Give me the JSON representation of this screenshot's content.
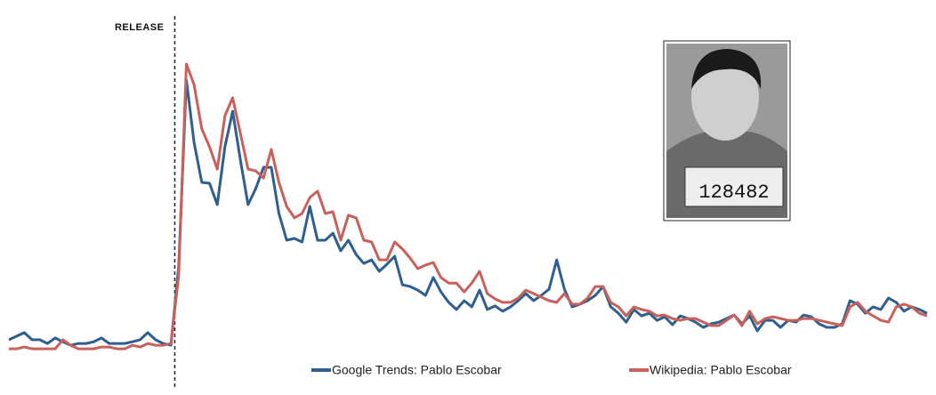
{
  "chart_data": {
    "type": "line",
    "xlim": [
      0,
      119
    ],
    "ylim": [
      0,
      100
    ],
    "legend": "bottom",
    "annotation": {
      "text": "RELEASE",
      "x": 21.5
    },
    "photo_plate": "128482",
    "series": [
      {
        "name": "Google Trends: Pablo Escobar",
        "color": "#2e5f8f",
        "values": [
          5.5,
          6.7,
          7.9,
          5.5,
          5.5,
          4.2,
          6.1,
          4.8,
          3.6,
          4.2,
          4.2,
          4.8,
          6.1,
          4.2,
          4.2,
          4.2,
          4.8,
          5.5,
          7.9,
          5.5,
          4.2,
          3.6,
          30.3,
          93.9,
          72.7,
          59.1,
          58.8,
          51.5,
          71.2,
          83.3,
          66.7,
          51.5,
          57,
          64.2,
          64.2,
          48.5,
          39.4,
          40,
          38.8,
          50.9,
          39.4,
          39.4,
          41.8,
          35.8,
          39.4,
          34.5,
          31.5,
          32.7,
          28.8,
          31.2,
          33.9,
          24.2,
          23.6,
          22.4,
          20.6,
          26.7,
          21.8,
          18.2,
          15.8,
          18.8,
          16.7,
          22.4,
          15.8,
          17,
          15.2,
          16.7,
          18.8,
          21.2,
          18.8,
          20.6,
          22.7,
          32.7,
          22.7,
          16.7,
          17.6,
          18.8,
          20.6,
          23.6,
          16.7,
          14.5,
          11.5,
          15.8,
          13.6,
          14.5,
          12.1,
          13.3,
          10.6,
          13.6,
          12.7,
          11.5,
          9.7,
          10.9,
          11.5,
          12.7,
          13.9,
          10.9,
          13.6,
          8.5,
          12.1,
          12.1,
          9.7,
          12.1,
          11.5,
          13.9,
          13.3,
          10.9,
          9.7,
          9.7,
          10.9,
          18.8,
          17.6,
          14.5,
          16.7,
          15.8,
          19.7,
          18.2,
          15.2,
          16.7,
          15.8,
          14.5
        ]
      },
      {
        "name": "Wikipedia: Pablo Escobar",
        "color": "#c9605a",
        "values": [
          2.4,
          2.4,
          3,
          2.4,
          2.4,
          2.4,
          2.4,
          5.5,
          3.6,
          2.4,
          2.4,
          2.4,
          3,
          3,
          2.4,
          2.4,
          3.6,
          3,
          4.2,
          3.6,
          3.6,
          4.2,
          27.3,
          99.4,
          92.4,
          77.3,
          71.2,
          63.6,
          81.8,
          87.9,
          75.8,
          63.6,
          63,
          60.6,
          70.3,
          59.1,
          50.9,
          47,
          48.5,
          53.9,
          56.1,
          48.5,
          49.1,
          39.4,
          47.9,
          47,
          39.4,
          38.8,
          32.7,
          32.7,
          38.8,
          36.4,
          33.3,
          29.7,
          30.9,
          31.8,
          26.7,
          24.8,
          24.8,
          21.8,
          24.8,
          28.8,
          21.2,
          19.4,
          18.2,
          18.2,
          19.7,
          22.4,
          21.2,
          20,
          18.8,
          18.2,
          21.2,
          17.6,
          17.6,
          19.7,
          23.6,
          23.6,
          18.2,
          16.7,
          13.6,
          16.7,
          15.8,
          15.2,
          13.6,
          13.9,
          12.7,
          12.1,
          12.7,
          12.7,
          11.5,
          10.3,
          10.3,
          12.1,
          13.9,
          10.3,
          15.2,
          10.9,
          12.7,
          13.3,
          12.7,
          12.1,
          12.1,
          12.7,
          12.7,
          12.1,
          11.5,
          10.9,
          10.3,
          16.7,
          18.2,
          15.2,
          13.6,
          12.1,
          11.5,
          16.7,
          17.6,
          16.7,
          14.5,
          13.6
        ]
      }
    ]
  }
}
